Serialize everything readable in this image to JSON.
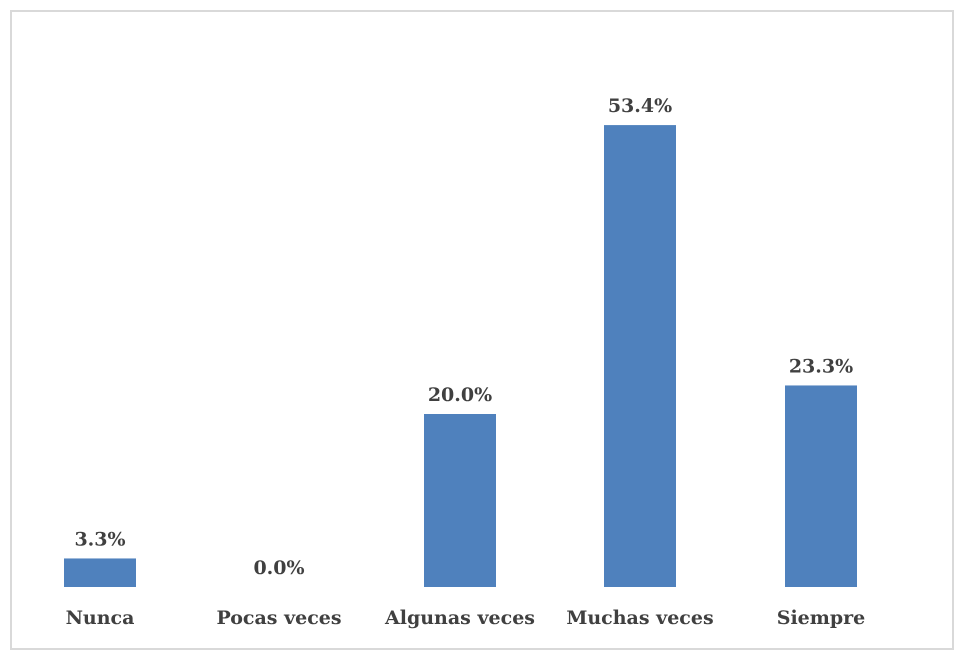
{
  "chart_data": {
    "type": "bar",
    "categories": [
      "Nunca",
      "Pocas veces",
      "Algunas veces",
      "Muchas veces",
      "Siempre"
    ],
    "values": [
      3.3,
      0.0,
      20.0,
      53.4,
      23.3
    ],
    "value_labels": [
      "3.3%",
      "0.0%",
      "20.0%",
      "53.4%",
      "23.3%"
    ],
    "title": "",
    "xlabel": "",
    "ylabel": "",
    "ylim": [
      0,
      60
    ],
    "grid": false,
    "legend": "none",
    "colors": {
      "bar": "#4F81BD",
      "text": "#404040",
      "border": "#D9D9D9"
    }
  }
}
